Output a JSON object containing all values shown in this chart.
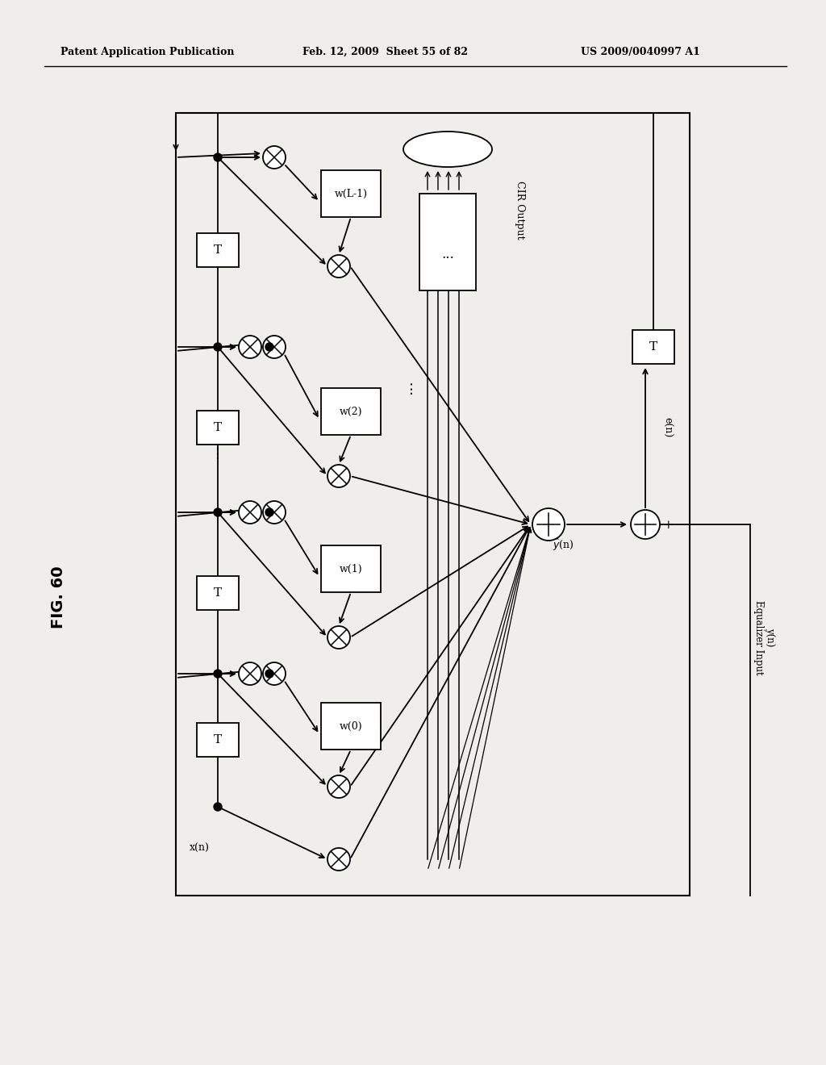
{
  "title_left": "Patent Application Publication",
  "title_mid": "Feb. 12, 2009  Sheet 55 of 82",
  "title_right": "US 2009/0040997 A1",
  "fig_label": "FIG. 60",
  "background_color": "#f0eeea",
  "page_background": "#ffffff",
  "diagram_bg": "#f0eeea",
  "x_input": "x(n)",
  "equalizer_label_1": "Equalizer Input",
  "equalizer_label_2": "y(n)",
  "cir_output_label": "CIR Output",
  "en_label": "e(n)",
  "yhat_label": "y(n)",
  "plus_label": "+"
}
